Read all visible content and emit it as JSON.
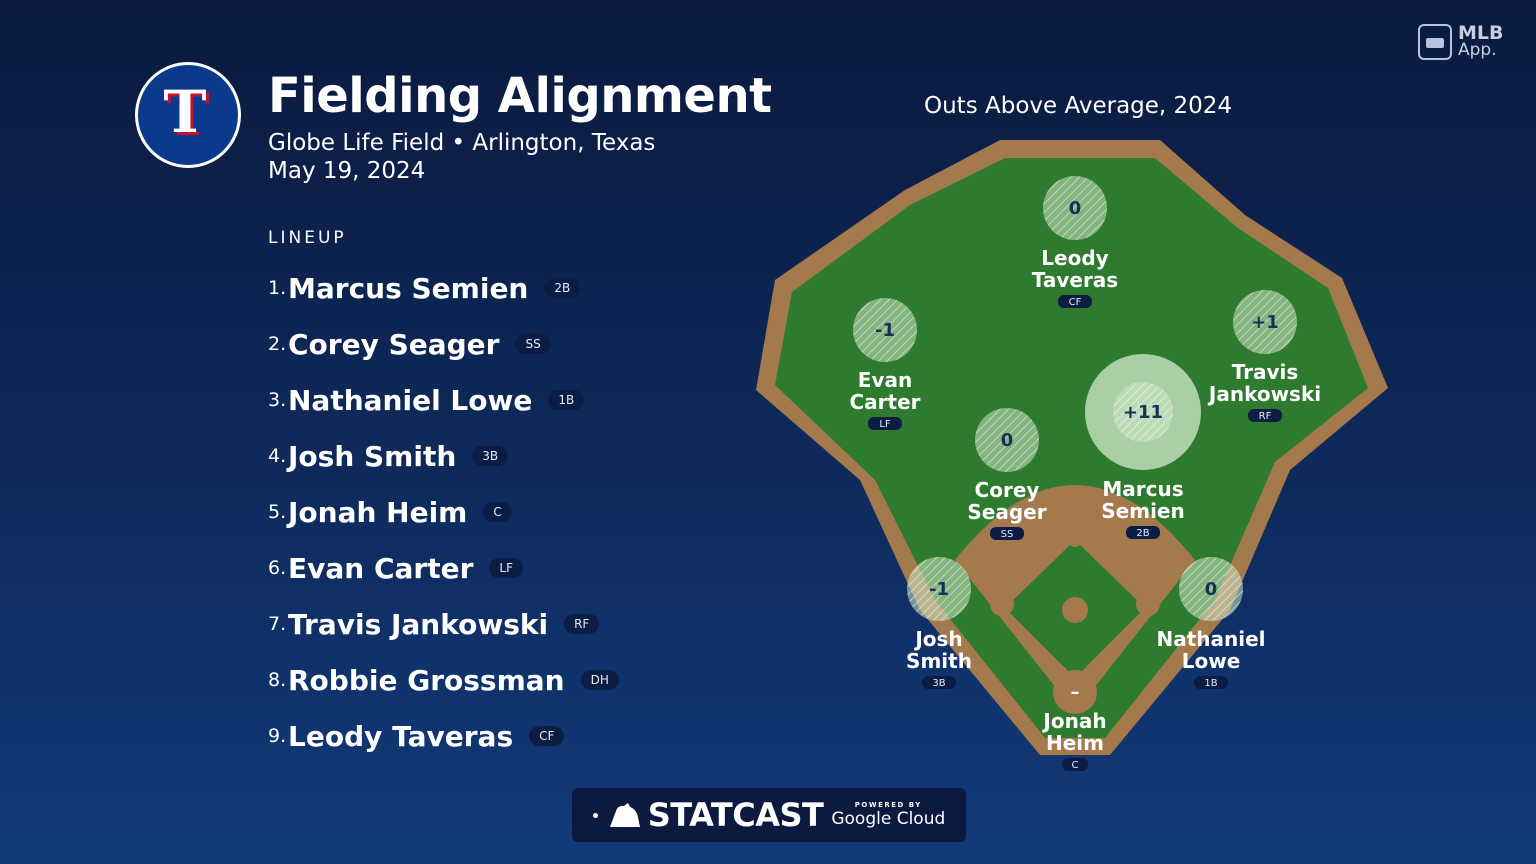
{
  "header": {
    "title": "Fielding Alignment",
    "subtitle": "Globe Life Field • Arlington, Texas",
    "date": "May 19, 2024",
    "team_logo_letter": "T"
  },
  "lineup": {
    "heading": "LINEUP",
    "players": [
      {
        "num": "1.",
        "name": "Marcus Semien",
        "pos": "2B"
      },
      {
        "num": "2.",
        "name": "Corey Seager",
        "pos": "SS"
      },
      {
        "num": "3.",
        "name": "Nathaniel Lowe",
        "pos": "1B"
      },
      {
        "num": "4.",
        "name": "Josh Smith",
        "pos": "3B"
      },
      {
        "num": "5.",
        "name": "Jonah Heim",
        "pos": "C"
      },
      {
        "num": "6.",
        "name": "Evan Carter",
        "pos": "LF"
      },
      {
        "num": "7.",
        "name": "Travis Jankowski",
        "pos": "RF"
      },
      {
        "num": "8.",
        "name": "Robbie Grossman",
        "pos": "DH"
      },
      {
        "num": "9.",
        "name": "Leody Taveras",
        "pos": "CF"
      }
    ]
  },
  "field": {
    "title": "Outs Above Average, 2024",
    "colors": {
      "grass": "#2e7a2e",
      "dirt": "#a47a4d",
      "marker": "#c9e3c3"
    },
    "fielders": [
      {
        "first": "Leody",
        "last": "Taveras",
        "pos": "CF",
        "oaa": "0"
      },
      {
        "first": "Evan",
        "last": "Carter",
        "pos": "LF",
        "oaa": "-1"
      },
      {
        "first": "Travis",
        "last": "Jankowski",
        "pos": "RF",
        "oaa": "+1"
      },
      {
        "first": "Corey",
        "last": "Seager",
        "pos": "SS",
        "oaa": "0"
      },
      {
        "first": "Marcus",
        "last": "Semien",
        "pos": "2B",
        "oaa": "+11"
      },
      {
        "first": "Josh",
        "last": "Smith",
        "pos": "3B",
        "oaa": "-1"
      },
      {
        "first": "Nathaniel",
        "last": "Lowe",
        "pos": "1B",
        "oaa": "0"
      },
      {
        "first": "Jonah",
        "last": "Heim",
        "pos": "C",
        "oaa": "–"
      }
    ]
  },
  "branding": {
    "app_line1": "MLB",
    "app_line2": "App.",
    "statcast": "STATCAST",
    "powered_by": "POWERED BY",
    "google_cloud": "Google Cloud"
  }
}
